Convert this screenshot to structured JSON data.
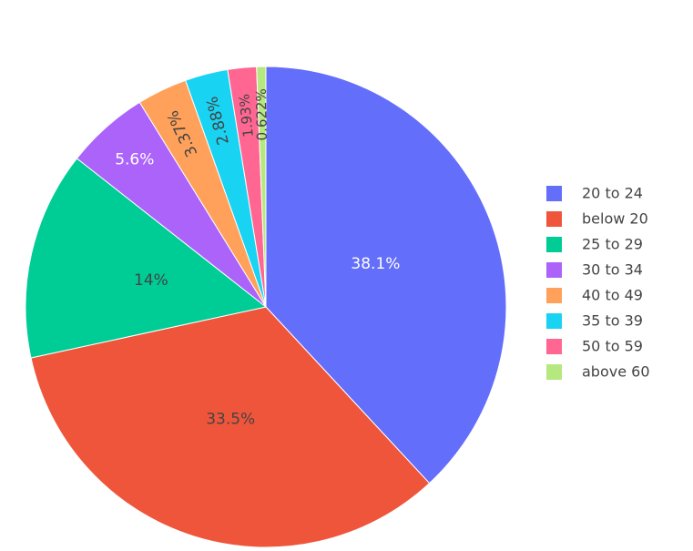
{
  "chart_data": {
    "type": "pie",
    "direction": "clockwise",
    "start_angle": "top (12 o'clock)",
    "slices": [
      {
        "label": "20 to 24",
        "value": 38.1,
        "text": "38.1%",
        "color": "#636efa",
        "text_color": "#ffffff"
      },
      {
        "label": "below 20",
        "value": 33.5,
        "text": "33.5%",
        "color": "#ef553b",
        "text_color": "#444444"
      },
      {
        "label": "25 to 29",
        "value": 14.0,
        "text": "14%",
        "color": "#00cc96",
        "text_color": "#444444"
      },
      {
        "label": "30 to 34",
        "value": 5.6,
        "text": "5.6%",
        "color": "#ab63fa",
        "text_color": "#ffffff"
      },
      {
        "label": "40 to 49",
        "value": 3.37,
        "text": "3.37%",
        "color": "#ffa15a",
        "text_color": "#444444"
      },
      {
        "label": "35 to 39",
        "value": 2.88,
        "text": "2.88%",
        "color": "#19d3f3",
        "text_color": "#444444"
      },
      {
        "label": "50 to 59",
        "value": 1.93,
        "text": "1.93%",
        "color": "#ff6692",
        "text_color": "#444444"
      },
      {
        "label": "above 60",
        "value": 0.622,
        "text": "0.622%",
        "color": "#b6e880",
        "text_color": "#444444"
      }
    ],
    "legend_placement": "right"
  }
}
